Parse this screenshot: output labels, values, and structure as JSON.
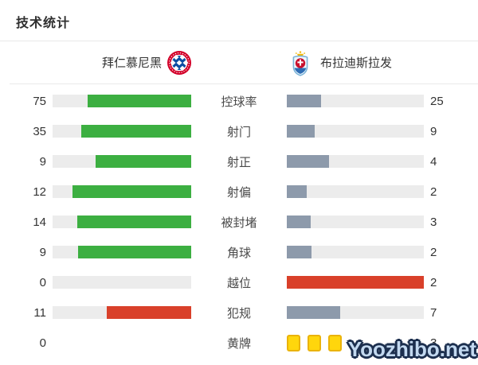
{
  "title": "技术统计",
  "teams": {
    "home": {
      "name": "拜仁慕尼黑"
    },
    "away": {
      "name": "布拉迪斯拉发"
    }
  },
  "stats": [
    {
      "label": "控球率",
      "home": {
        "value": "75",
        "pct": 75,
        "color": "green"
      },
      "away": {
        "value": "25",
        "pct": 25,
        "color": "slate"
      }
    },
    {
      "label": "射门",
      "home": {
        "value": "35",
        "pct": 79.5,
        "color": "green"
      },
      "away": {
        "value": "9",
        "pct": 20.5,
        "color": "slate"
      }
    },
    {
      "label": "射正",
      "home": {
        "value": "9",
        "pct": 69.2,
        "color": "green"
      },
      "away": {
        "value": "4",
        "pct": 30.8,
        "color": "slate"
      }
    },
    {
      "label": "射偏",
      "home": {
        "value": "12",
        "pct": 85.7,
        "color": "green"
      },
      "away": {
        "value": "2",
        "pct": 14.3,
        "color": "slate"
      }
    },
    {
      "label": "被封堵",
      "home": {
        "value": "14",
        "pct": 82.4,
        "color": "green"
      },
      "away": {
        "value": "3",
        "pct": 17.6,
        "color": "slate"
      }
    },
    {
      "label": "角球",
      "home": {
        "value": "9",
        "pct": 81.8,
        "color": "green"
      },
      "away": {
        "value": "2",
        "pct": 18.2,
        "color": "slate"
      }
    },
    {
      "label": "越位",
      "home": {
        "value": "0",
        "pct": 0,
        "color": "green"
      },
      "away": {
        "value": "2",
        "pct": 100,
        "color": "red"
      }
    },
    {
      "label": "犯规",
      "home": {
        "value": "11",
        "pct": 61.1,
        "color": "red"
      },
      "away": {
        "value": "7",
        "pct": 38.9,
        "color": "slate"
      }
    },
    {
      "label": "黄牌",
      "home": {
        "value": "0",
        "pct": null
      },
      "away": {
        "value": "3",
        "cards": 3
      }
    }
  ],
  "colors": {
    "home_bar": "#3caf41",
    "away_bar": "#8d9aab",
    "negative_bar": "#d9402a",
    "track": "#ececec",
    "yellow_card": "#ffd60c"
  },
  "watermark": "Yoozhibo.net",
  "chart_data": {
    "type": "bar",
    "title": "技术统计",
    "orientation": "horizontal-paired",
    "categories": [
      "控球率",
      "射门",
      "射正",
      "射偏",
      "被封堵",
      "角球",
      "越位",
      "犯规",
      "黄牌"
    ],
    "series": [
      {
        "name": "拜仁慕尼黑",
        "values": [
          75,
          35,
          9,
          12,
          14,
          9,
          0,
          11,
          0
        ]
      },
      {
        "name": "布拉迪斯拉发",
        "values": [
          25,
          9,
          4,
          2,
          3,
          2,
          2,
          7,
          3
        ]
      }
    ],
    "notes": "Each bar fill is proportional to value/(home+away); home bars right-aligned green (red for fouls), away bars left-aligned slate (red full bar for offside), yellow cards shown as 3 card icons"
  }
}
